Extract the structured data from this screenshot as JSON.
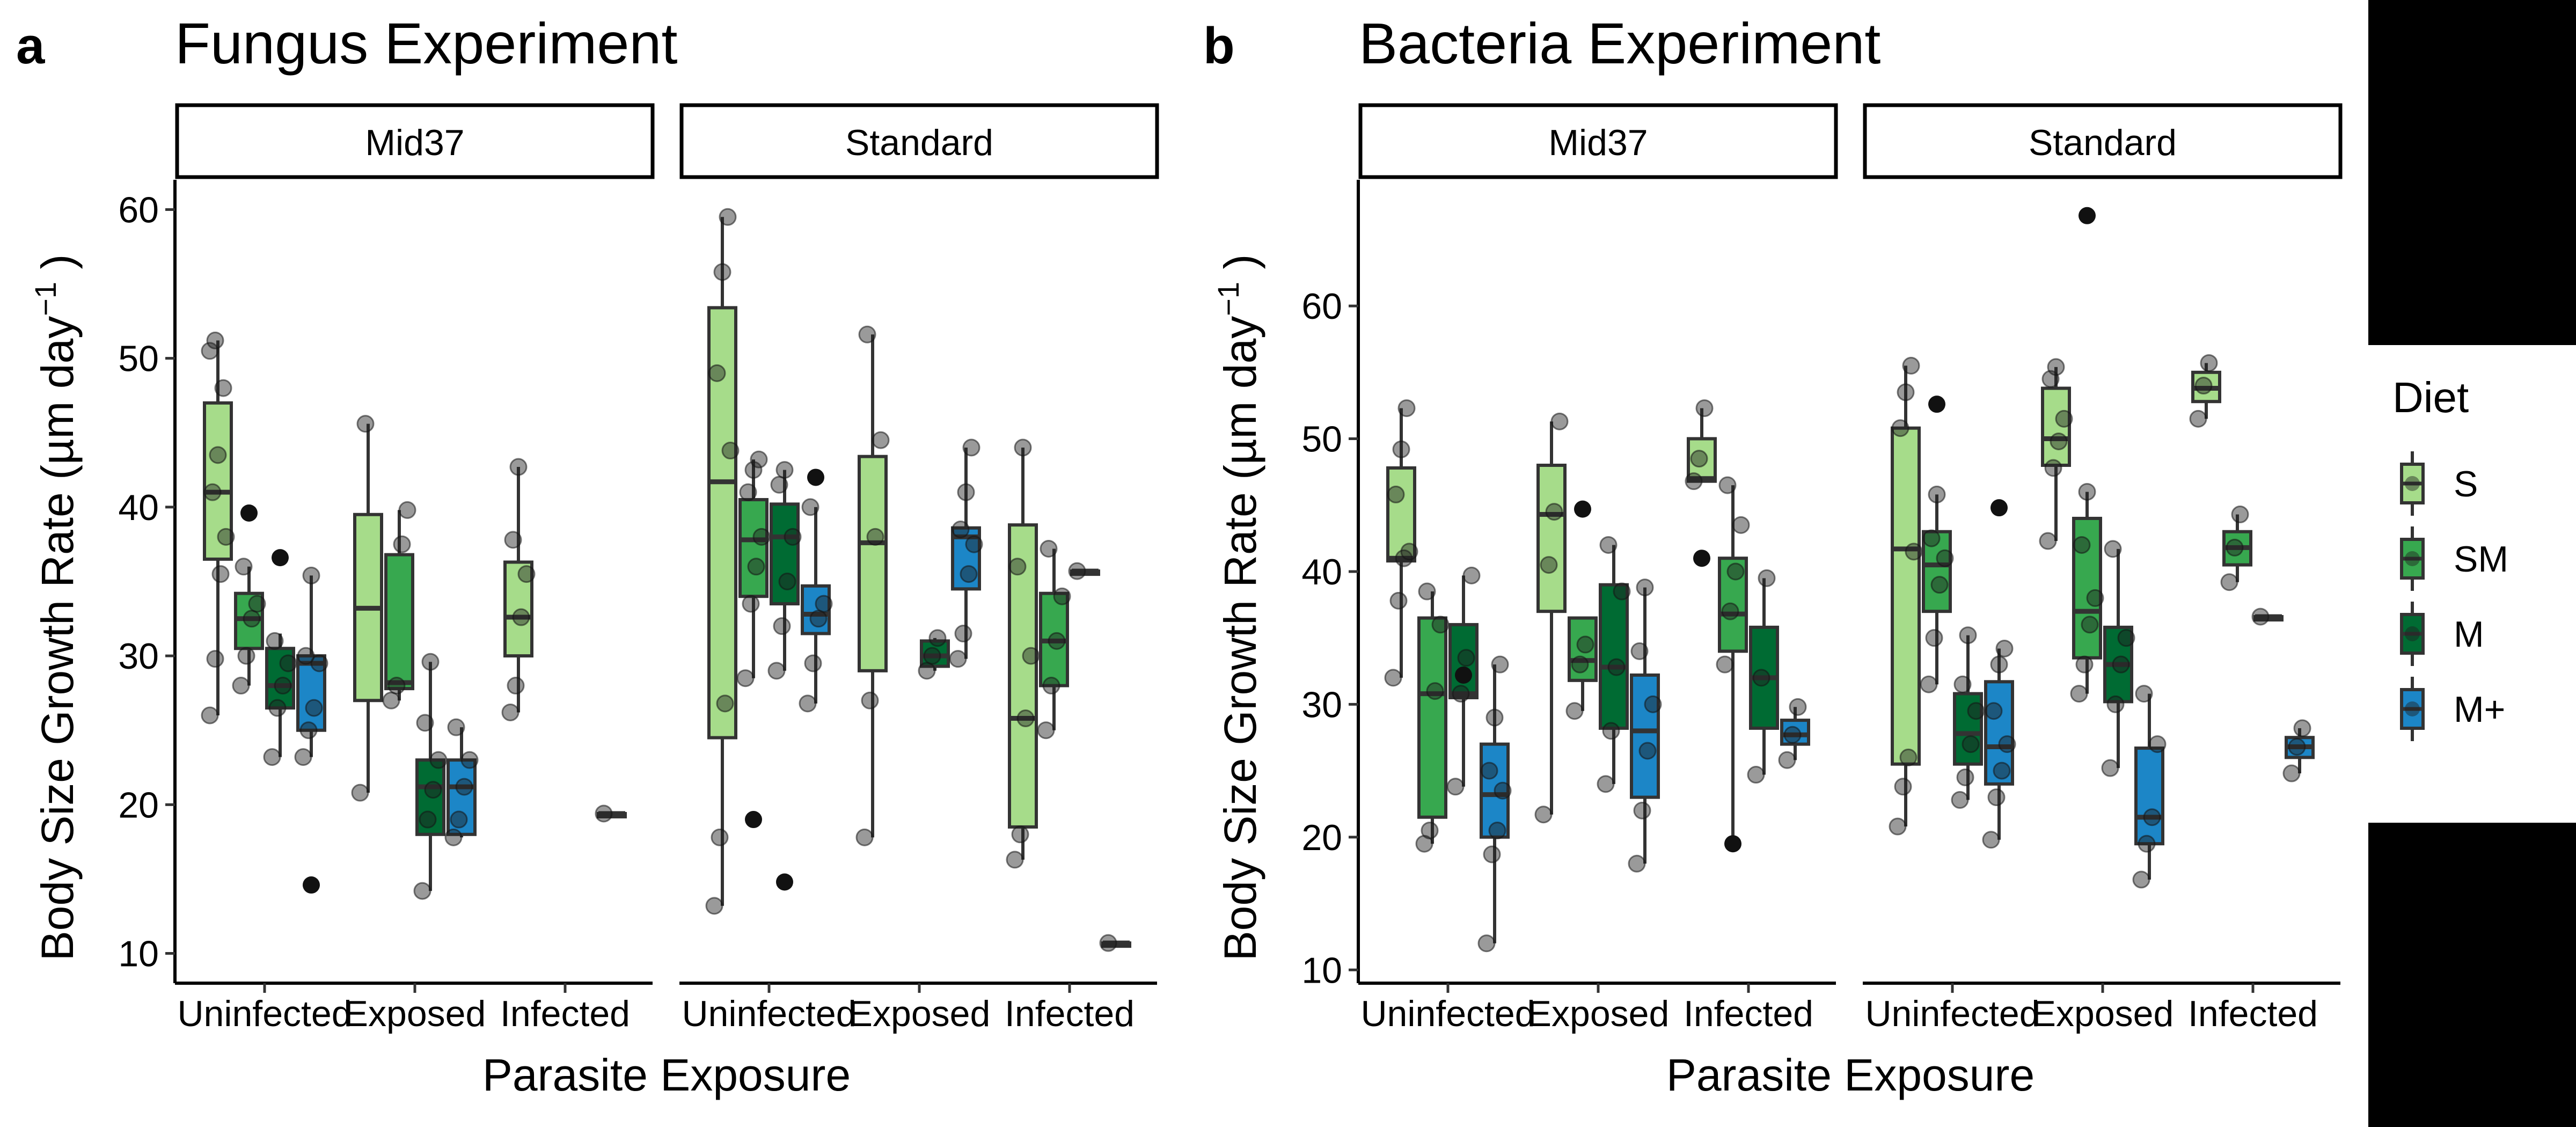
{
  "figure": {
    "legend": {
      "title": "Diet",
      "items": [
        {
          "label": "S",
          "color": "#a6dc8a"
        },
        {
          "label": "SM",
          "color": "#37a84f"
        },
        {
          "label": "M",
          "color": "#006b33"
        },
        {
          "label": "M+",
          "color": "#1c86c7"
        }
      ]
    },
    "x_categories": [
      "Uninfected",
      "Exposed",
      "Infected"
    ],
    "xlabel": "Parasite Exposure",
    "ylabel_main": "Body Size Growth Rate (µm day",
    "ylabel_sup": "−1",
    "ylabel_end": " )"
  },
  "chart_data": [
    {
      "type": "box",
      "panel": "a",
      "title": "Fungus Experiment",
      "ylim": [
        8,
        62
      ],
      "yticks": [
        10,
        20,
        30,
        40,
        50,
        60
      ],
      "facets": [
        {
          "name": "Mid37",
          "groups": [
            {
              "cat": "Uninfected",
              "diet": "S",
              "q1": 36.5,
              "median": 41.0,
              "q3": 47.0,
              "wlo": 26.0,
              "whi": 51.2,
              "out": [],
              "pts": [
                26,
                29.8,
                35.5,
                38,
                41,
                43.5,
                48,
                50.5,
                51.2
              ]
            },
            {
              "cat": "Uninfected",
              "diet": "SM",
              "q1": 30.5,
              "median": 32.5,
              "q3": 34.2,
              "wlo": 28.0,
              "whi": 36.0,
              "out": [
                39.6
              ],
              "pts": [
                28,
                30,
                32.5,
                33.5,
                36
              ]
            },
            {
              "cat": "Uninfected",
              "diet": "M",
              "q1": 26.5,
              "median": 28.0,
              "q3": 30.5,
              "wlo": 23.2,
              "whi": 31.5,
              "out": [
                36.6
              ],
              "pts": [
                23.2,
                26.5,
                28,
                29.5,
                31
              ]
            },
            {
              "cat": "Uninfected",
              "diet": "M+",
              "q1": 25.0,
              "median": 29.5,
              "q3": 30.0,
              "wlo": 23.2,
              "whi": 35.4,
              "out": [
                14.6
              ],
              "pts": [
                23.2,
                25,
                26.5,
                29.5,
                30,
                35.4
              ]
            },
            {
              "cat": "Exposed",
              "diet": "S",
              "q1": 27.0,
              "median": 33.2,
              "q3": 39.5,
              "wlo": 20.8,
              "whi": 45.6,
              "out": [],
              "pts": [
                20.8,
                45.6
              ]
            },
            {
              "cat": "Exposed",
              "diet": "SM",
              "q1": 27.8,
              "median": 28.2,
              "q3": 36.8,
              "wlo": 27.0,
              "whi": 39.8,
              "out": [],
              "pts": [
                27,
                28,
                37.5,
                39.8
              ]
            },
            {
              "cat": "Exposed",
              "diet": "M",
              "q1": 18.0,
              "median": 21.2,
              "q3": 23.0,
              "wlo": 14.2,
              "whi": 29.6,
              "out": [],
              "pts": [
                14.2,
                19,
                21,
                23,
                25.5,
                29.6
              ]
            },
            {
              "cat": "Exposed",
              "diet": "M+",
              "q1": 18.0,
              "median": 21.2,
              "q3": 23.0,
              "wlo": 17.8,
              "whi": 25.2,
              "out": [],
              "pts": [
                17.8,
                19,
                21.2,
                23,
                25.2
              ]
            },
            {
              "cat": "Infected",
              "diet": "S",
              "q1": 30.0,
              "median": 32.6,
              "q3": 36.3,
              "wlo": 26.2,
              "whi": 42.7,
              "out": [],
              "pts": [
                26.2,
                28,
                32.6,
                35.5,
                37.8,
                42.7
              ]
            },
            {
              "cat": "Infected",
              "diet": "M+",
              "q1": 19.4,
              "median": 19.4,
              "q3": 19.4,
              "wlo": 19.4,
              "whi": 19.4,
              "out": [],
              "pts": [
                19.4
              ]
            }
          ]
        },
        {
          "name": "Standard",
          "groups": [
            {
              "cat": "Uninfected",
              "diet": "S",
              "q1": 24.5,
              "median": 41.7,
              "q3": 53.4,
              "wlo": 13.2,
              "whi": 59.5,
              "out": [],
              "pts": [
                13.2,
                17.8,
                26.8,
                43.8,
                49,
                55.8,
                59.5
              ]
            },
            {
              "cat": "Uninfected",
              "diet": "SM",
              "q1": 34.0,
              "median": 37.8,
              "q3": 40.5,
              "wlo": 28.5,
              "whi": 43.2,
              "out": [
                19.0
              ],
              "pts": [
                28.5,
                33.5,
                36,
                38,
                41,
                42.5,
                43.2
              ]
            },
            {
              "cat": "Uninfected",
              "diet": "M",
              "q1": 33.5,
              "median": 38.0,
              "q3": 40.2,
              "wlo": 29.0,
              "whi": 42.5,
              "out": [
                14.8
              ],
              "pts": [
                29,
                32,
                35,
                38,
                41.5,
                42.5
              ]
            },
            {
              "cat": "Uninfected",
              "diet": "M+",
              "q1": 31.5,
              "median": 32.8,
              "q3": 34.7,
              "wlo": 26.8,
              "whi": 40.0,
              "out": [
                42.0
              ],
              "pts": [
                26.8,
                29.5,
                32.5,
                33.5,
                40
              ]
            },
            {
              "cat": "Exposed",
              "diet": "S",
              "q1": 29.0,
              "median": 37.6,
              "q3": 43.4,
              "wlo": 17.8,
              "whi": 51.6,
              "out": [],
              "pts": [
                17.8,
                27,
                38,
                44.5,
                51.6
              ]
            },
            {
              "cat": "Exposed",
              "diet": "M",
              "q1": 29.3,
              "median": 30.0,
              "q3": 31.0,
              "wlo": 29.0,
              "whi": 31.2,
              "out": [],
              "pts": [
                29,
                30,
                31.2
              ]
            },
            {
              "cat": "Exposed",
              "diet": "M+",
              "q1": 34.5,
              "median": 38.0,
              "q3": 38.6,
              "wlo": 29.8,
              "whi": 44.0,
              "out": [],
              "pts": [
                29.8,
                31.5,
                35.5,
                37.5,
                38.5,
                41,
                44
              ]
            },
            {
              "cat": "Infected",
              "diet": "S",
              "q1": 18.5,
              "median": 25.8,
              "q3": 38.8,
              "wlo": 16.3,
              "whi": 44.0,
              "out": [],
              "pts": [
                16.3,
                18,
                25.8,
                30,
                36,
                44
              ]
            },
            {
              "cat": "Infected",
              "diet": "SM",
              "q1": 28.0,
              "median": 31.0,
              "q3": 34.2,
              "wlo": 25.0,
              "whi": 37.2,
              "out": [],
              "pts": [
                25,
                28,
                31,
                34,
                37.2
              ]
            },
            {
              "cat": "Infected",
              "diet": "M",
              "q1": 35.7,
              "median": 35.7,
              "q3": 35.7,
              "wlo": 35.7,
              "whi": 35.7,
              "out": [],
              "pts": [
                35.7
              ]
            },
            {
              "cat": "Infected",
              "diet": "M+",
              "q1": 10.7,
              "median": 10.7,
              "q3": 10.7,
              "wlo": 10.7,
              "whi": 10.7,
              "out": [],
              "pts": [
                10.7
              ]
            }
          ]
        }
      ]
    },
    {
      "type": "box",
      "panel": "b",
      "title": "Bacteria Experiment",
      "ylim": [
        9,
        69.5
      ],
      "yticks": [
        10,
        20,
        30,
        40,
        50,
        60
      ],
      "facets": [
        {
          "name": "Mid37",
          "groups": [
            {
              "cat": "Uninfected",
              "diet": "S",
              "q1": 40.8,
              "median": 41.0,
              "q3": 47.8,
              "wlo": 32.0,
              "whi": 52.3,
              "out": [],
              "pts": [
                32,
                37.8,
                41,
                41.5,
                45.8,
                49.2,
                52.3
              ]
            },
            {
              "cat": "Uninfected",
              "diet": "SM",
              "q1": 21.5,
              "median": 30.8,
              "q3": 36.5,
              "wlo": 19.5,
              "whi": 38.5,
              "out": [],
              "pts": [
                19.5,
                20.5,
                31,
                36,
                38.5
              ]
            },
            {
              "cat": "Uninfected",
              "diet": "M",
              "q1": 30.5,
              "median": 30.8,
              "q3": 36.0,
              "wlo": 23.8,
              "whi": 39.7,
              "out": [
                32.2
              ],
              "pts": [
                23.8,
                30.8,
                33.5,
                39.7
              ]
            },
            {
              "cat": "Uninfected",
              "diet": "M+",
              "q1": 20.0,
              "median": 23.2,
              "q3": 27.0,
              "wlo": 12.0,
              "whi": 33.0,
              "out": [],
              "pts": [
                12,
                18.7,
                20.5,
                23.5,
                25,
                29,
                33
              ]
            },
            {
              "cat": "Exposed",
              "diet": "S",
              "q1": 37.0,
              "median": 44.3,
              "q3": 48.0,
              "wlo": 21.7,
              "whi": 51.3,
              "out": [],
              "pts": [
                21.7,
                40.5,
                44.5,
                51.3
              ]
            },
            {
              "cat": "Exposed",
              "diet": "SM",
              "q1": 31.8,
              "median": 33.3,
              "q3": 36.5,
              "wlo": 29.5,
              "whi": 36.5,
              "out": [
                44.7
              ],
              "pts": [
                29.5,
                33,
                34.5
              ]
            },
            {
              "cat": "Exposed",
              "diet": "M",
              "q1": 28.2,
              "median": 32.8,
              "q3": 39.0,
              "wlo": 24.0,
              "whi": 42.0,
              "out": [],
              "pts": [
                24,
                28,
                32.8,
                38.5,
                42
              ]
            },
            {
              "cat": "Exposed",
              "diet": "M+",
              "q1": 23.0,
              "median": 28.0,
              "q3": 32.2,
              "wlo": 18.0,
              "whi": 38.8,
              "out": [],
              "pts": [
                18,
                22,
                26.5,
                30,
                34,
                38.8
              ]
            },
            {
              "cat": "Infected",
              "diet": "S",
              "q1": 46.8,
              "median": 47.0,
              "q3": 50.0,
              "wlo": 46.8,
              "whi": 52.3,
              "out": [
                41.0
              ],
              "pts": [
                46.8,
                48.5,
                52.3
              ]
            },
            {
              "cat": "Infected",
              "diet": "SM",
              "q1": 34.0,
              "median": 36.8,
              "q3": 41.0,
              "wlo": 19.5,
              "whi": 46.5,
              "out": [
                19.5
              ],
              "pts": [
                33,
                37,
                40,
                43.5,
                46.5
              ]
            },
            {
              "cat": "Infected",
              "diet": "M",
              "q1": 28.2,
              "median": 32.0,
              "q3": 35.8,
              "wlo": 24.7,
              "whi": 39.5,
              "out": [],
              "pts": [
                24.7,
                32,
                39.5
              ]
            },
            {
              "cat": "Infected",
              "diet": "M+",
              "q1": 27.0,
              "median": 27.7,
              "q3": 28.8,
              "wlo": 25.8,
              "whi": 29.8,
              "out": [],
              "pts": [
                25.8,
                27.7,
                29.8
              ]
            }
          ]
        },
        {
          "name": "Standard",
          "groups": [
            {
              "cat": "Uninfected",
              "diet": "S",
              "q1": 25.5,
              "median": 41.7,
              "q3": 50.8,
              "wlo": 20.8,
              "whi": 55.5,
              "out": [],
              "pts": [
                20.8,
                23.8,
                26,
                41.5,
                50.8,
                53.5,
                55.5
              ]
            },
            {
              "cat": "Uninfected",
              "diet": "SM",
              "q1": 37.0,
              "median": 40.5,
              "q3": 43.0,
              "wlo": 31.5,
              "whi": 45.8,
              "out": [
                52.6
              ],
              "pts": [
                31.5,
                35,
                39,
                41,
                42.5,
                45.8
              ]
            },
            {
              "cat": "Uninfected",
              "diet": "M",
              "q1": 25.5,
              "median": 27.8,
              "q3": 30.8,
              "wlo": 22.8,
              "whi": 35.2,
              "out": [],
              "pts": [
                22.8,
                24.5,
                27,
                29.5,
                31.5,
                35.2
              ]
            },
            {
              "cat": "Uninfected",
              "diet": "M+",
              "q1": 24.0,
              "median": 26.8,
              "q3": 31.7,
              "wlo": 19.8,
              "whi": 34.2,
              "out": [
                44.8
              ],
              "pts": [
                19.8,
                23,
                25,
                27,
                29.5,
                33,
                34.2
              ]
            },
            {
              "cat": "Exposed",
              "diet": "S",
              "q1": 48.0,
              "median": 50.0,
              "q3": 53.8,
              "wlo": 42.3,
              "whi": 55.4,
              "out": [],
              "pts": [
                42.3,
                47.8,
                49.8,
                51.5,
                54.5,
                55.4
              ]
            },
            {
              "cat": "Exposed",
              "diet": "SM",
              "q1": 33.5,
              "median": 37.0,
              "q3": 44.0,
              "wlo": 30.8,
              "whi": 46.0,
              "out": [
                66.8
              ],
              "pts": [
                30.8,
                33,
                36,
                38,
                42,
                46
              ]
            },
            {
              "cat": "Exposed",
              "diet": "M",
              "q1": 30.2,
              "median": 33.0,
              "q3": 35.8,
              "wlo": 25.2,
              "whi": 41.7,
              "out": [],
              "pts": [
                25.2,
                30,
                33,
                35,
                41.7
              ]
            },
            {
              "cat": "Exposed",
              "diet": "M+",
              "q1": 19.5,
              "median": 21.5,
              "q3": 26.7,
              "wlo": 16.8,
              "whi": 30.8,
              "out": [],
              "pts": [
                16.8,
                19.5,
                21.5,
                27,
                30.8
              ]
            },
            {
              "cat": "Infected",
              "diet": "S",
              "q1": 52.8,
              "median": 53.8,
              "q3": 55.0,
              "wlo": 51.5,
              "whi": 55.7,
              "out": [],
              "pts": [
                51.5,
                54,
                55.7
              ]
            },
            {
              "cat": "Infected",
              "diet": "SM",
              "q1": 40.5,
              "median": 41.8,
              "q3": 43.0,
              "wlo": 39.2,
              "whi": 44.3,
              "out": [],
              "pts": [
                39.2,
                41.8,
                44.3
              ]
            },
            {
              "cat": "Infected",
              "diet": "M",
              "q1": 36.6,
              "median": 36.6,
              "q3": 36.6,
              "wlo": 36.6,
              "whi": 36.6,
              "out": [],
              "pts": [
                36.6
              ]
            },
            {
              "cat": "Infected",
              "diet": "M+",
              "q1": 26.0,
              "median": 26.8,
              "q3": 27.5,
              "wlo": 24.8,
              "whi": 28.2,
              "out": [],
              "pts": [
                24.8,
                26.8,
                28.2
              ]
            }
          ]
        }
      ]
    }
  ]
}
